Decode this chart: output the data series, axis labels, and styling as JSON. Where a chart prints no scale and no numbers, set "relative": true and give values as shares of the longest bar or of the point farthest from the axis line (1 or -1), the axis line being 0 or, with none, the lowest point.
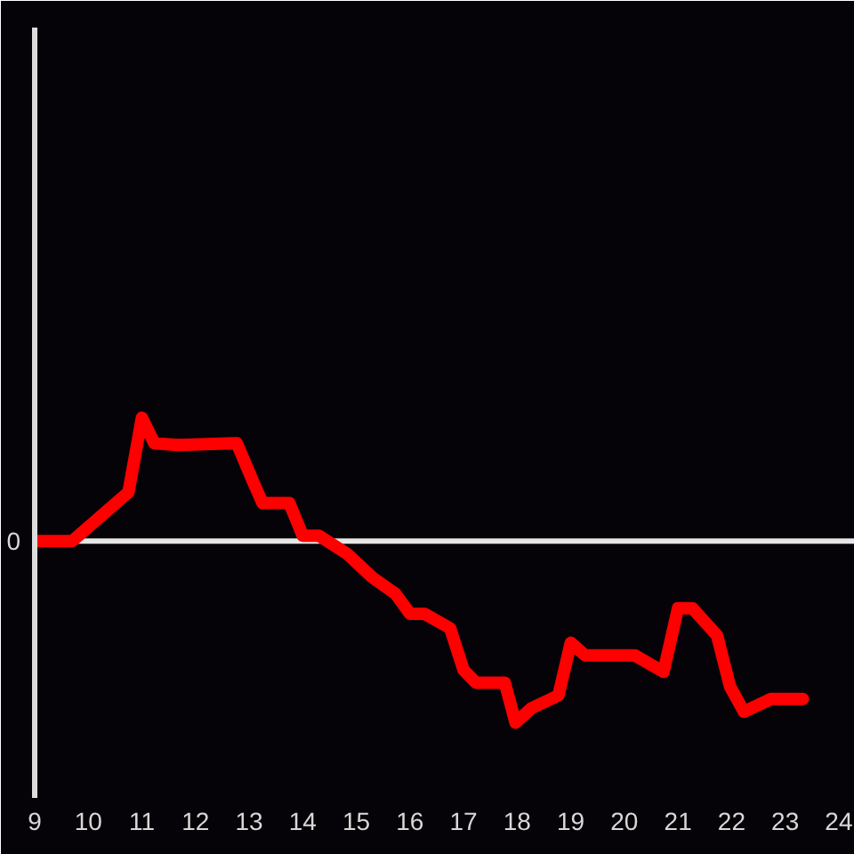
{
  "chart_data": {
    "type": "line",
    "relative": true,
    "x": [
      9,
      9.7,
      10.75,
      11.0,
      11.23,
      11.67,
      12.77,
      13.07,
      13.25,
      13.75,
      14.0,
      14.3,
      14.83,
      15.3,
      15.73,
      16.0,
      16.27,
      16.75,
      17.0,
      17.23,
      17.77,
      17.97,
      18.27,
      18.77,
      19.0,
      19.27,
      20.2,
      20.73,
      21.0,
      21.27,
      21.73,
      21.97,
      22.23,
      22.73,
      23.33
    ],
    "values": [
      0,
      0,
      0.27,
      0.68,
      0.54,
      0.53,
      0.54,
      0.33,
      0.21,
      0.21,
      0.03,
      0.03,
      -0.07,
      -0.2,
      -0.29,
      -0.4,
      -0.4,
      -0.48,
      -0.71,
      -0.78,
      -0.78,
      -1,
      -0.92,
      -0.85,
      -0.56,
      -0.63,
      -0.63,
      -0.72,
      -0.37,
      -0.37,
      -0.52,
      -0.8,
      -0.94,
      -0.87,
      -0.87
    ],
    "color": "#ff0000",
    "line_style": "solid",
    "xlim": [
      9,
      24.3
    ],
    "xticks": [
      9,
      10,
      11,
      12,
      13,
      14,
      15,
      16,
      17,
      18,
      19,
      20,
      21,
      22,
      23,
      24
    ],
    "ref_lines": [
      {
        "axis": "y",
        "value": 0,
        "label": "0",
        "color": "#e6e6e6"
      }
    ],
    "grid": false
  }
}
